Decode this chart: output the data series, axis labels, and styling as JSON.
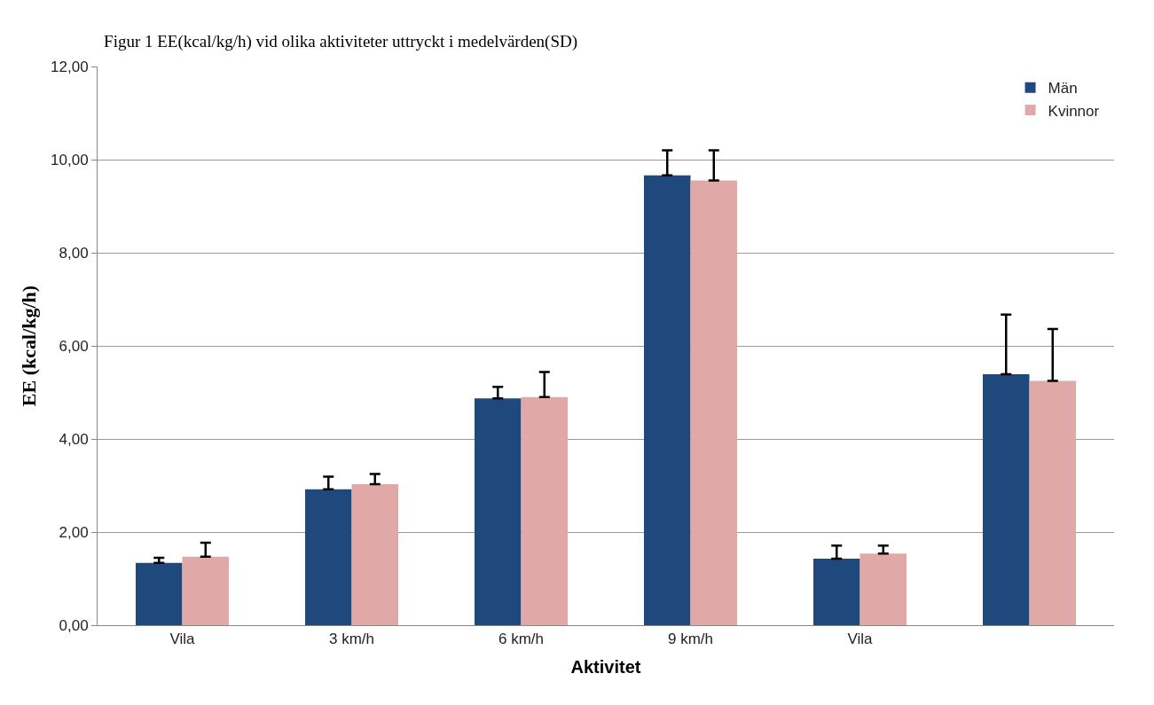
{
  "chart_data": {
    "type": "bar",
    "title": "Figur 1 EE(kcal/kg/h) vid olika aktiviteter uttryckt i medelvärden(SD)",
    "xlabel": "Aktivitet",
    "ylabel": "EE (kcal/kg/h)",
    "categories": [
      "Vila",
      "3 km/h",
      "6 km/h",
      "9 km/h",
      "Vila",
      null
    ],
    "series": [
      {
        "name": "Män",
        "color": "#1f497d",
        "values": [
          1.34,
          2.92,
          4.87,
          9.66,
          1.43,
          5.39
        ],
        "errors": [
          [
            1.34,
            1.45
          ],
          [
            2.92,
            3.19
          ],
          [
            4.87,
            5.12
          ],
          [
            9.66,
            10.2
          ],
          [
            1.43,
            1.71
          ],
          [
            5.39,
            6.67
          ]
        ]
      },
      {
        "name": "Kvinnor",
        "color": "#e0a9a8",
        "values": [
          1.47,
          3.03,
          4.9,
          9.55,
          1.54,
          5.25
        ],
        "errors": [
          [
            1.47,
            1.77
          ],
          [
            3.03,
            3.25
          ],
          [
            4.9,
            5.44
          ],
          [
            9.55,
            10.2
          ],
          [
            1.54,
            1.71
          ],
          [
            5.25,
            6.36
          ]
        ]
      }
    ],
    "ylim": [
      0,
      12
    ],
    "yticks": [
      {
        "value": 0,
        "label": "0,00"
      },
      {
        "value": 2,
        "label": "2,00"
      },
      {
        "value": 4,
        "label": "4,00"
      },
      {
        "value": 6,
        "label": "6,00"
      },
      {
        "value": 8,
        "label": "8,00"
      },
      {
        "value": 10,
        "label": "10,00"
      },
      {
        "value": 12,
        "label": "12,00"
      }
    ],
    "grid": "y",
    "legend": "top right"
  }
}
